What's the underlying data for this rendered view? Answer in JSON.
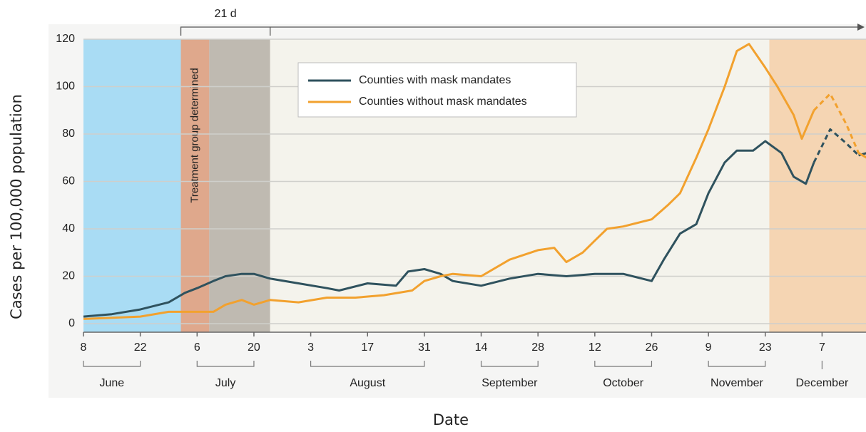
{
  "chart_data": {
    "type": "line",
    "y_label": "Cases per 100,000 population",
    "x_label": "Date",
    "annotation": "Treatment group determined",
    "bracket": {
      "label": "21 d",
      "start": "07-02",
      "end": "07-24"
    },
    "xlim": [
      "06-08",
      "12-18"
    ],
    "ylim": [
      -3.6,
      120
    ],
    "yticks": [
      0,
      20,
      40,
      60,
      80,
      100,
      120
    ],
    "grid": true,
    "xticks": [
      {
        "value": "06-08",
        "label": "8"
      },
      {
        "value": "06-22",
        "label": "22"
      },
      {
        "value": "07-06",
        "label": "6"
      },
      {
        "value": "07-20",
        "label": "20"
      },
      {
        "value": "08-03",
        "label": "3"
      },
      {
        "value": "08-17",
        "label": "17"
      },
      {
        "value": "08-31",
        "label": "31"
      },
      {
        "value": "09-14",
        "label": "14"
      },
      {
        "value": "09-28",
        "label": "28"
      },
      {
        "value": "10-12",
        "label": "12"
      },
      {
        "value": "10-26",
        "label": "26"
      },
      {
        "value": "11-09",
        "label": "9"
      },
      {
        "value": "11-23",
        "label": "23"
      },
      {
        "value": "12-07",
        "label": "7"
      }
    ],
    "months": [
      {
        "label": "June",
        "start": "06-08",
        "end": "06-22"
      },
      {
        "label": "July",
        "start": "07-06",
        "end": "07-20"
      },
      {
        "label": "August",
        "start": "08-03",
        "end": "08-31"
      },
      {
        "label": "September",
        "start": "09-14",
        "end": "09-28"
      },
      {
        "label": "October",
        "start": "10-12",
        "end": "10-26"
      },
      {
        "label": "November",
        "start": "11-09",
        "end": "11-23"
      },
      {
        "label": "December",
        "start": "12-07",
        "end": "12-07"
      }
    ],
    "periods": [
      {
        "start": "06-08",
        "end": "07-02",
        "color": "#a9dcf4"
      },
      {
        "start": "07-02",
        "end": "07-09",
        "color": "#dfa88c"
      },
      {
        "start": "07-09",
        "end": "07-24",
        "color": "#bfbab1"
      },
      {
        "start": "07-24",
        "end": "11-24",
        "color": "#f4f3ec"
      },
      {
        "start": "11-24",
        "end": "12-18",
        "color": "#f5d5b3"
      }
    ],
    "dashed_range": [
      "12-05",
      "12-16"
    ],
    "series": [
      {
        "name": "Counties with mask mandates",
        "color": "#2f525e",
        "x": [
          "06-08",
          "06-15",
          "06-22",
          "06-29",
          "07-03",
          "07-06",
          "07-10",
          "07-13",
          "07-17",
          "07-20",
          "07-24",
          "07-31",
          "08-07",
          "08-10",
          "08-17",
          "08-24",
          "08-27",
          "08-31",
          "09-04",
          "09-07",
          "09-14",
          "09-21",
          "09-28",
          "10-05",
          "10-12",
          "10-19",
          "10-26",
          "10-29",
          "11-02",
          "11-06",
          "11-09",
          "11-13",
          "11-16",
          "11-20",
          "11-23",
          "11-27",
          "11-30",
          "12-03",
          "12-05",
          "12-09",
          "12-13",
          "12-16",
          "12-18"
        ],
        "values": [
          3,
          4,
          6,
          9,
          13,
          15,
          18,
          20,
          21,
          21,
          19,
          17,
          15,
          14,
          17,
          16,
          22,
          23,
          21,
          18,
          16,
          19,
          21,
          20,
          21,
          21,
          18,
          27,
          38,
          42,
          55,
          68,
          73,
          73,
          77,
          72,
          62,
          59,
          68,
          82,
          76,
          71,
          72
        ]
      },
      {
        "name": "Counties without mask mandates",
        "color": "#f2a12e",
        "x": [
          "06-08",
          "06-22",
          "06-29",
          "07-06",
          "07-10",
          "07-13",
          "07-17",
          "07-20",
          "07-24",
          "07-31",
          "08-07",
          "08-14",
          "08-21",
          "08-28",
          "08-31",
          "09-04",
          "09-07",
          "09-14",
          "09-21",
          "09-28",
          "10-02",
          "10-05",
          "10-09",
          "10-12",
          "10-15",
          "10-19",
          "10-26",
          "10-30",
          "11-02",
          "11-06",
          "11-09",
          "11-13",
          "11-16",
          "11-19",
          "11-23",
          "11-26",
          "11-30",
          "12-02",
          "12-05",
          "12-09",
          "12-13",
          "12-16",
          "12-18"
        ],
        "values": [
          2,
          3,
          5,
          5,
          5,
          8,
          10,
          8,
          10,
          9,
          11,
          11,
          12,
          14,
          18,
          20,
          21,
          20,
          27,
          31,
          32,
          26,
          30,
          35,
          40,
          41,
          44,
          50,
          55,
          70,
          82,
          100,
          115,
          118,
          108,
          100,
          88,
          78,
          90,
          97,
          84,
          72,
          70
        ]
      }
    ]
  }
}
